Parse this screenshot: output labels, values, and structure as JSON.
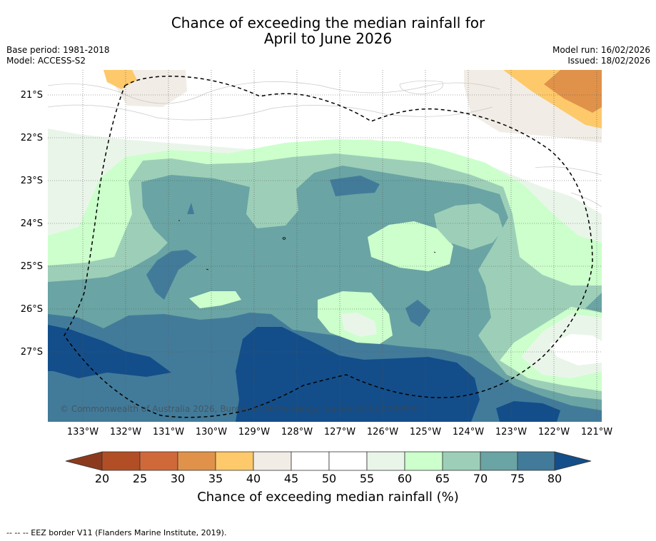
{
  "title": {
    "line1": "Chance of exceeding the median rainfall for",
    "line2": "April to June 2026"
  },
  "meta": {
    "base_period": "Base period: 1981-2018",
    "model": "Model: ACCESS-S2",
    "model_run": "Model run: 16/02/2026",
    "issued": "Issued: 18/02/2026"
  },
  "map": {
    "latitude_labels": [
      "21°S",
      "22°S",
      "23°S",
      "24°S",
      "25°S",
      "26°S",
      "27°S"
    ],
    "longitude_labels": [
      "133°W",
      "132°W",
      "131°W",
      "130°W",
      "129°W",
      "128°W",
      "127°W",
      "126°W",
      "125°W",
      "124°W",
      "123°W",
      "122°W",
      "121°W"
    ],
    "copyright": "© Commonwealth of Australia 2026, Bureau of Meteorology, supported by COSPPac",
    "boundary": "EEZ border (dashed)"
  },
  "colorbar": {
    "ticks": [
      "20",
      "25",
      "30",
      "35",
      "40",
      "45",
      "50",
      "55",
      "60",
      "65",
      "70",
      "75",
      "80"
    ],
    "label": "Chance of exceeding median rainfall (%)",
    "colors": [
      "#8c3a1e",
      "#b24e26",
      "#d0693a",
      "#e0924a",
      "#fdc96a",
      "#f1ede6",
      "#ffffff",
      "#ffffff",
      "#eaf5ea",
      "#ccffcc",
      "#9dcfb8",
      "#6aa4a4",
      "#427b9a",
      "#134e8a"
    ]
  },
  "footer": {
    "legend": "--  --  -- EEZ border V11 (Flanders Marine Institute, 2019)."
  }
}
